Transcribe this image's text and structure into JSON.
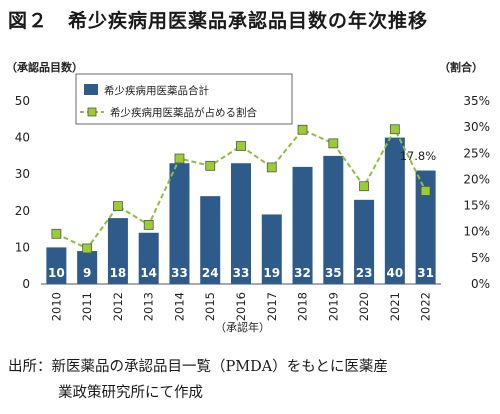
{
  "figure_title": "図２　希少疾病用医薬品承認品目数の年次推移",
  "source": {
    "line1": "出所：新医薬品の承認品目一覧（PMDA）をもとに医薬産",
    "line2": "業政策研究所にて作成"
  },
  "chart_data": {
    "type": "bar",
    "categories": [
      "2010",
      "2011",
      "2012",
      "2013",
      "2014",
      "2015",
      "2016",
      "2017",
      "2018",
      "2019",
      "2020",
      "2021",
      "2022"
    ],
    "xlabel": "（承認年）",
    "ylabel_left": "（承認品目数）",
    "ylabel_right": "（割合）",
    "left_axis": {
      "ylim": [
        0,
        50
      ],
      "ticks": [
        "0",
        "10",
        "20",
        "30",
        "40",
        "50"
      ]
    },
    "right_axis": {
      "ylim": [
        0,
        35
      ],
      "ticks": [
        "0%",
        "5%",
        "10%",
        "15%",
        "20%",
        "25%",
        "30%",
        "35%"
      ]
    },
    "grid": false,
    "legend_position": "top-left",
    "series": [
      {
        "name": "希少疾病用医薬品合計",
        "type": "bar",
        "axis": "left",
        "color": "#2e5b8a",
        "values": [
          10,
          9,
          18,
          14,
          33,
          24,
          33,
          19,
          32,
          35,
          23,
          40,
          31
        ],
        "labels": [
          "10",
          "9",
          "18",
          "14",
          "33",
          "24",
          "33",
          "19",
          "32",
          "35",
          "23",
          "40",
          "31"
        ]
      },
      {
        "name": "希少疾病用医薬品が占める割合",
        "type": "line",
        "axis": "right",
        "color": "#8cbf3f",
        "marker_color": "#9acd32",
        "values": [
          9.6,
          6.8,
          14.9,
          11.3,
          24.0,
          22.6,
          26.4,
          22.3,
          29.5,
          26.9,
          18.7,
          29.6,
          17.8
        ]
      }
    ],
    "annotation": {
      "category": "2022",
      "text": "17.8%"
    }
  }
}
